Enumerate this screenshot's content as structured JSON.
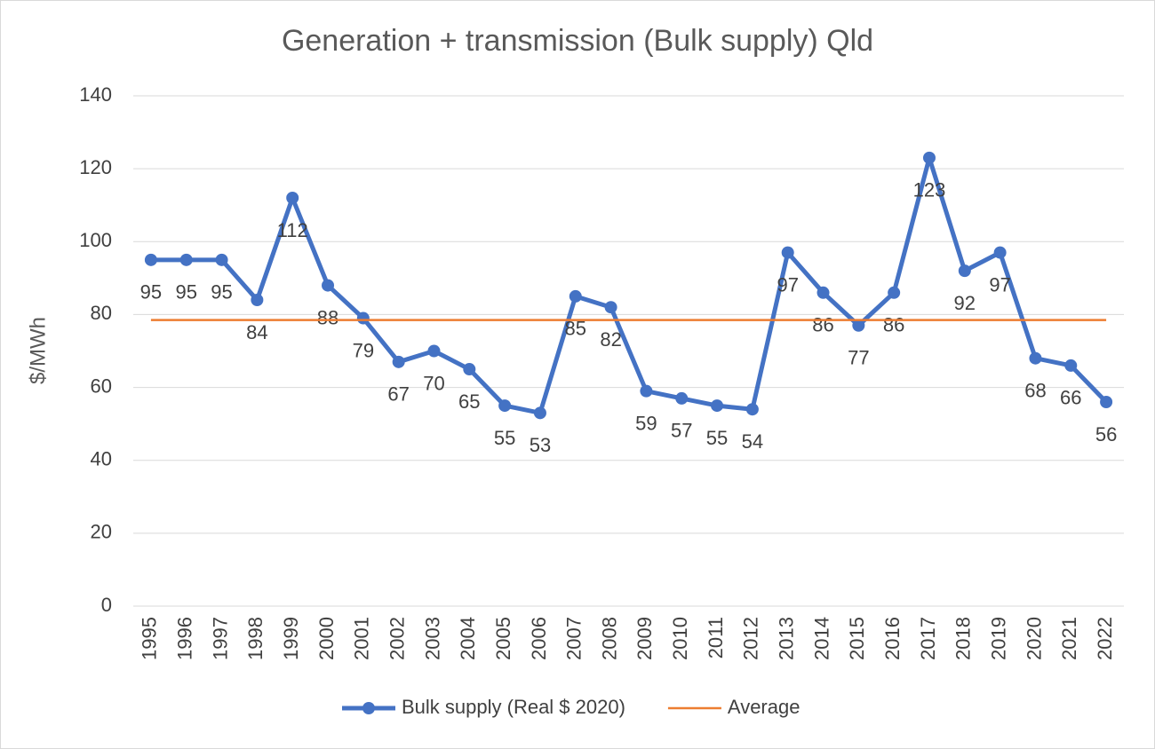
{
  "chart_data": {
    "type": "line",
    "title": "Generation + transmission (Bulk supply) Qld",
    "y_label": "$/MWh",
    "categories": [
      "1995",
      "1996",
      "1997",
      "1998",
      "1999",
      "2000",
      "2001",
      "2002",
      "2003",
      "2004",
      "2005",
      "2006",
      "2007",
      "2008",
      "2009",
      "2010",
      "2011",
      "2012",
      "2013",
      "2014",
      "2015",
      "2016",
      "2017",
      "2018",
      "2019",
      "2020",
      "2021",
      "2022"
    ],
    "series": [
      {
        "name": "Bulk supply (Real $ 2020)",
        "color": "#4472c4",
        "markers": true,
        "data_labels": true,
        "values": [
          95,
          95,
          95,
          84,
          112,
          88,
          79,
          67,
          70,
          65,
          55,
          53,
          85,
          82,
          59,
          57,
          55,
          54,
          97,
          86,
          77,
          86,
          123,
          92,
          97,
          68,
          66,
          56
        ]
      },
      {
        "name": "Average",
        "color": "#ed7d31",
        "markers": false,
        "data_labels": false,
        "values": [
          78.5,
          78.5,
          78.5,
          78.5,
          78.5,
          78.5,
          78.5,
          78.5,
          78.5,
          78.5,
          78.5,
          78.5,
          78.5,
          78.5,
          78.5,
          78.5,
          78.5,
          78.5,
          78.5,
          78.5,
          78.5,
          78.5,
          78.5,
          78.5,
          78.5,
          78.5,
          78.5,
          78.5
        ]
      }
    ],
    "ylim": [
      0,
      140
    ],
    "yticks": [
      0,
      20,
      40,
      60,
      80,
      100,
      120,
      140
    ],
    "grid": true,
    "legend": "bottom"
  }
}
